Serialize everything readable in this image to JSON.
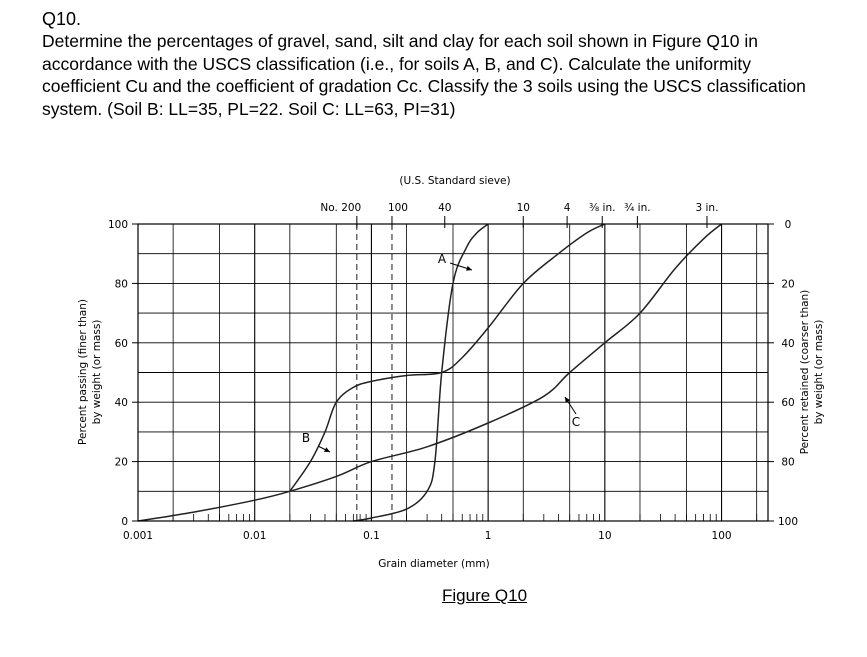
{
  "question": {
    "number": "Q10.",
    "text": "Determine the percentages of gravel, sand, silt and clay for each soil shown in Figure Q10 in accordance with the USCS classification (i.e., for soils A, B, and C). Calculate the uniformity coefficient Cu and the coefficient of gradation Cc. Classify the 3 soils using the USCS classification system. (Soil B: LL=35, PL=22. Soil C: LL=63, PI=31)"
  },
  "figure_caption": "Figure Q10",
  "chart_data": {
    "type": "line",
    "title": "(U.S. Standard sieve)",
    "xlabel": "Grain diameter (mm)",
    "ylabel": "Percent passing (finer than) by weight (or mass)",
    "ylabel_lines": [
      "Percent passing (finer than)",
      "by weight (or mass)"
    ],
    "y2label_lines": [
      "Percent retained (coarser than)",
      "by weight (or mass)"
    ],
    "x_scale": "log",
    "xlim": [
      0.001,
      250
    ],
    "ylim": [
      0,
      100
    ],
    "x_ticks": [
      {
        "value": 0.001,
        "label": "0.001"
      },
      {
        "value": 0.01,
        "label": "0.01"
      },
      {
        "value": 0.1,
        "label": "0.1"
      },
      {
        "value": 1,
        "label": "1"
      },
      {
        "value": 10,
        "label": "10"
      },
      {
        "value": 100,
        "label": "100"
      }
    ],
    "y_ticks": [
      {
        "value": 0,
        "label": "0"
      },
      {
        "value": 20,
        "label": "20"
      },
      {
        "value": 40,
        "label": "40"
      },
      {
        "value": 60,
        "label": "60"
      },
      {
        "value": 80,
        "label": "80"
      },
      {
        "value": 100,
        "label": "100"
      }
    ],
    "y2_ticks": [
      {
        "value": 0,
        "label": "100"
      },
      {
        "value": 20,
        "label": "80"
      },
      {
        "value": 40,
        "label": "60"
      },
      {
        "value": 60,
        "label": "40"
      },
      {
        "value": 80,
        "label": "20"
      },
      {
        "value": 100,
        "label": "0"
      }
    ],
    "sieves": [
      {
        "label": "No. 200",
        "size": 0.075
      },
      {
        "label": "100",
        "size": 0.15
      },
      {
        "label": "40",
        "size": 0.425
      },
      {
        "label": "10",
        "size": 2.0
      },
      {
        "label": "4",
        "size": 4.75
      },
      {
        "label": "⅜ in.",
        "size": 9.5
      },
      {
        "label": "¾ in.",
        "size": 19.0
      },
      {
        "label": "3 in.",
        "size": 75.0
      }
    ],
    "series": [
      {
        "name": "A",
        "points": [
          [
            0.07,
            0
          ],
          [
            0.1,
            1
          ],
          [
            0.2,
            4
          ],
          [
            0.3,
            10
          ],
          [
            0.35,
            20
          ],
          [
            0.4,
            50
          ],
          [
            0.5,
            80
          ],
          [
            0.65,
            92
          ],
          [
            0.8,
            97
          ],
          [
            1.0,
            100
          ]
        ]
      },
      {
        "name": "B",
        "points": [
          [
            0.02,
            10
          ],
          [
            0.03,
            20
          ],
          [
            0.04,
            30
          ],
          [
            0.05,
            40
          ],
          [
            0.07,
            45
          ],
          [
            0.1,
            47
          ],
          [
            0.2,
            49
          ],
          [
            0.4,
            50
          ],
          [
            0.6,
            55
          ],
          [
            1.0,
            65
          ],
          [
            2.0,
            80
          ],
          [
            4.0,
            90
          ],
          [
            7.0,
            97
          ],
          [
            10.0,
            100
          ]
        ]
      },
      {
        "name": "C",
        "points": [
          [
            0.001,
            0
          ],
          [
            0.003,
            3
          ],
          [
            0.01,
            7
          ],
          [
            0.02,
            10
          ],
          [
            0.05,
            15
          ],
          [
            0.1,
            20
          ],
          [
            0.3,
            25
          ],
          [
            1.0,
            33
          ],
          [
            3.0,
            42
          ],
          [
            5.0,
            50
          ],
          [
            10.0,
            60
          ],
          [
            20.0,
            70
          ],
          [
            40.0,
            85
          ],
          [
            70.0,
            95
          ],
          [
            100.0,
            100
          ]
        ]
      }
    ]
  }
}
